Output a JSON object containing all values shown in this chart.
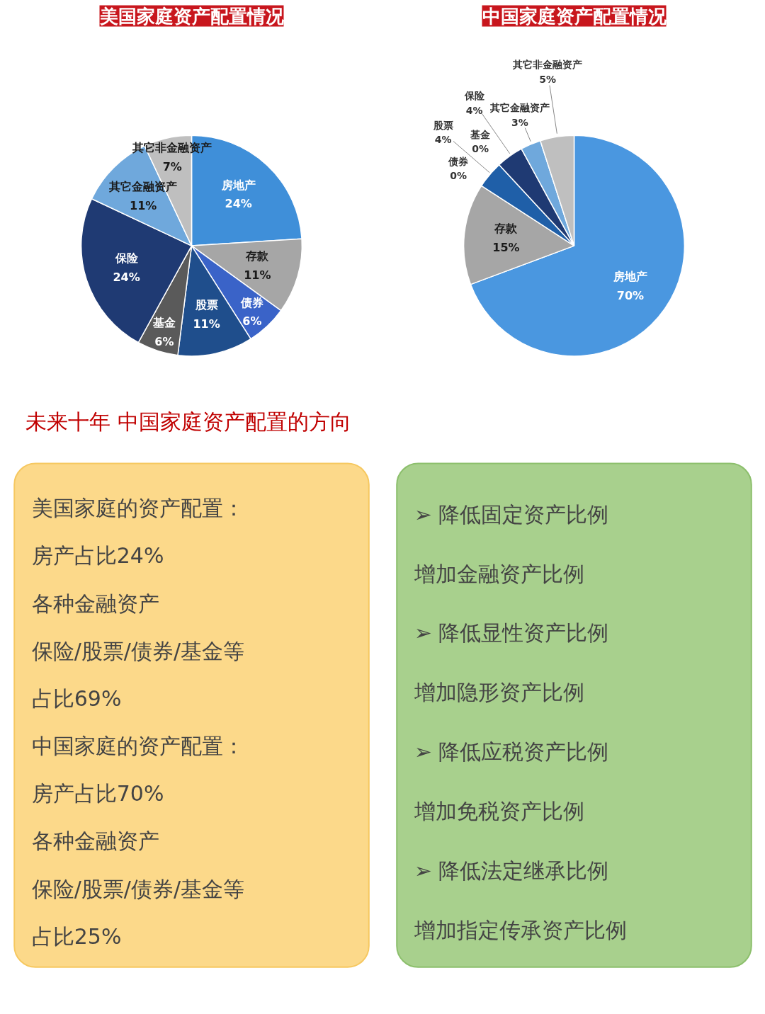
{
  "chart_data": [
    {
      "type": "pie",
      "title": "美国家庭资产配置情况",
      "categories": [
        "房地产",
        "存款",
        "债券",
        "股票",
        "基金",
        "保险",
        "其它金融资产",
        "其它非金融资产"
      ],
      "values": [
        24,
        11,
        6,
        11,
        6,
        24,
        11,
        7
      ],
      "value_labels": [
        "24%",
        "11%",
        "6%",
        "11%",
        "6%",
        "24%",
        "11%",
        "7%"
      ],
      "colors": [
        "#3f8fd9",
        "#a6a6a6",
        "#3a63c8",
        "#1f4e8c",
        "#5a5a5a",
        "#1f3a73",
        "#6fa8dc",
        "#bfbfbf"
      ]
    },
    {
      "type": "pie",
      "title": "中国家庭资产配置情况",
      "categories": [
        "房地产",
        "存款",
        "债券",
        "股票",
        "基金",
        "保险",
        "其它金融资产",
        "其它非金融资产"
      ],
      "values": [
        70,
        15,
        0,
        4,
        0,
        4,
        3,
        5
      ],
      "value_labels": [
        "70%",
        "15%",
        "0%",
        "4%",
        "0%",
        "4%",
        "3%",
        "5%"
      ],
      "colors": [
        "#4a97e0",
        "#a6a6a6",
        "#1f4e8c",
        "#1f5fa8",
        "#5a5a5a",
        "#1f3a73",
        "#6fa8dc",
        "#bfbfbf"
      ]
    },
    {
      "type": "other",
      "title": "未来十年  中国家庭资产配置的方向",
      "annotations": [
        "美国家庭的资产配置：",
        "房产占比24%",
        "各种金融资产",
        "保险/股票/债券/基金等",
        "占比69%",
        "中国家庭的资产配置：",
        "房产占比70%",
        "各种金融资产",
        "保险/股票/债券/基金等",
        "占比25%"
      ]
    },
    {
      "type": "other",
      "annotations": [
        "➢ 降低固定资产比例",
        "增加金融资产比例",
        "➢ 降低显性资产比例",
        "增加隐形资产比例",
        "➢ 降低应税资产比例",
        "增加免税资产比例",
        "➢ 降低法定继承比例",
        "增加指定传承资产比例"
      ]
    }
  ]
}
